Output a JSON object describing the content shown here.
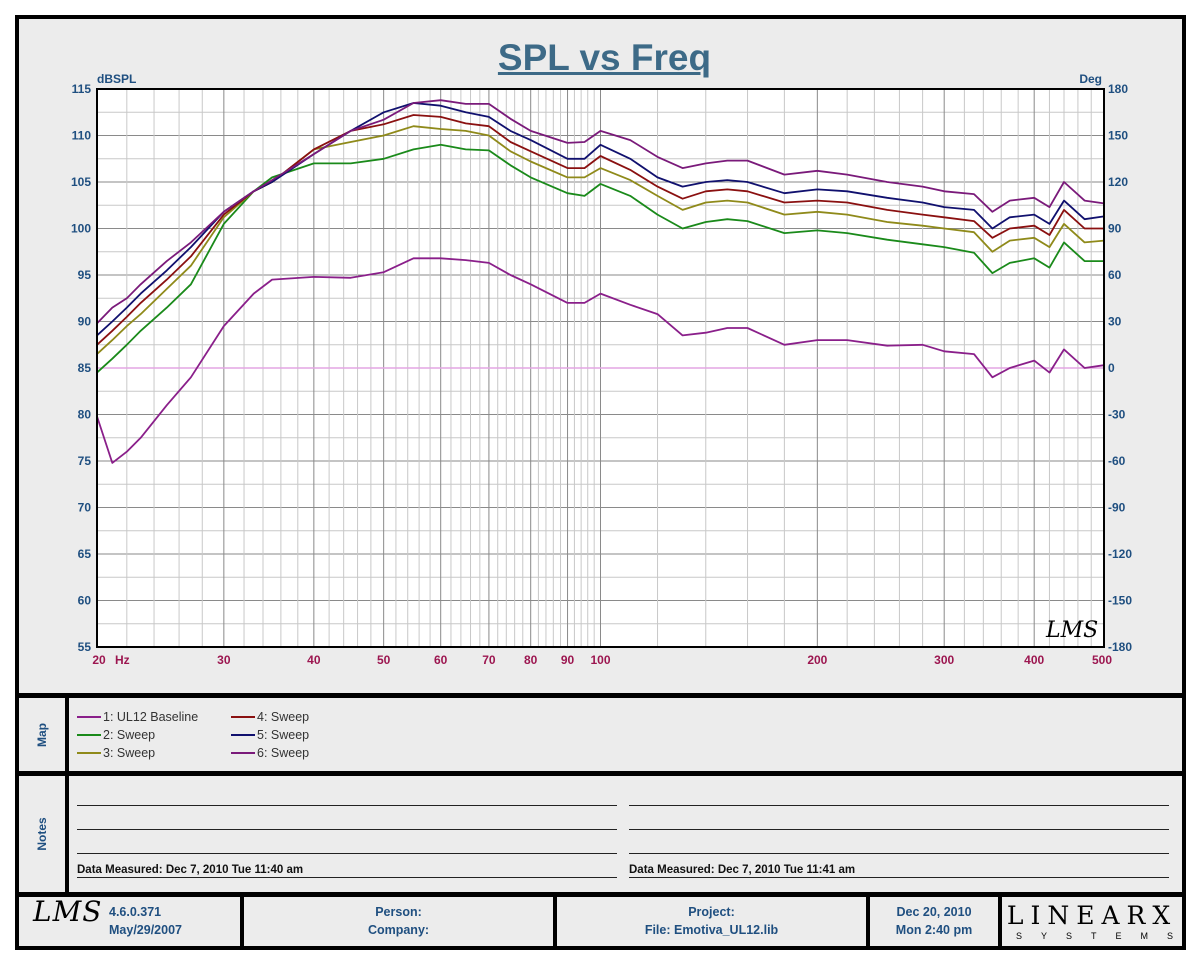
{
  "chart_data": {
    "type": "line",
    "title": "SPL vs Freq",
    "ylabel": "dBSPL",
    "y2label": "Deg",
    "xscale": "log",
    "xlim": [
      20,
      500
    ],
    "ylim": [
      55,
      115
    ],
    "y2lim": [
      -180,
      180
    ],
    "grid": true,
    "x_ticks": [
      "20",
      "30",
      "40",
      "50",
      "60",
      "70",
      "80",
      "90",
      "100",
      "200",
      "300",
      "400",
      "500"
    ],
    "x_unit_label": "Hz",
    "y_ticks": [
      "115",
      "110",
      "105",
      "100",
      "95",
      "90",
      "85",
      "80",
      "75",
      "70",
      "65",
      "60",
      "55"
    ],
    "y2_ticks": [
      "180",
      "150",
      "120",
      "90",
      "60",
      "30",
      "0",
      "-30",
      "-60",
      "-90",
      "-120",
      "-150",
      "-180"
    ],
    "reference_line": {
      "deg": 0,
      "color": "#e3a6e3"
    },
    "x": [
      20,
      21,
      22,
      23,
      25,
      27,
      30,
      33,
      35,
      40,
      45,
      50,
      55,
      60,
      65,
      70,
      75,
      80,
      90,
      95,
      100,
      110,
      120,
      130,
      140,
      150,
      160,
      180,
      200,
      220,
      250,
      280,
      300,
      330,
      350,
      370,
      400,
      420,
      440,
      470,
      500
    ],
    "series": [
      {
        "name": "1: UL12 Baseline",
        "color": "#8a1f8a",
        "values": [
          79.8,
          74.8,
          76,
          77.5,
          81,
          84,
          89.5,
          93,
          94.5,
          94.8,
          94.7,
          95.3,
          96.8,
          96.8,
          96.6,
          96.3,
          95,
          94,
          92,
          92,
          93,
          91.8,
          90.8,
          88.5,
          88.8,
          89.3,
          89.3,
          87.5,
          88,
          88,
          87.4,
          87.5,
          86.8,
          86.5,
          84,
          85,
          85.8,
          84.5,
          87,
          85,
          85.3
        ]
      },
      {
        "name": "2: Sweep",
        "color": "#1a8a1a",
        "values": [
          84.5,
          86,
          87.5,
          89,
          91.5,
          94,
          100.5,
          104,
          105.5,
          107,
          107,
          107.5,
          108.5,
          109,
          108.5,
          108.4,
          106.8,
          105.5,
          103.8,
          103.5,
          104.8,
          103.5,
          101.5,
          100,
          100.7,
          101,
          100.8,
          99.5,
          99.8,
          99.5,
          98.8,
          98.3,
          98,
          97.4,
          95.2,
          96.3,
          96.8,
          95.8,
          98.5,
          96.5,
          96.5
        ]
      },
      {
        "name": "3: Sweep",
        "color": "#8f8a1a",
        "values": [
          86.5,
          88,
          89.5,
          90.8,
          93.5,
          96,
          101.2,
          104,
          105,
          108.5,
          109.3,
          110,
          111,
          110.7,
          110.5,
          110,
          108.3,
          107.2,
          105.5,
          105.5,
          106.5,
          105.2,
          103.5,
          102,
          102.8,
          103,
          102.8,
          101.5,
          101.8,
          101.5,
          100.7,
          100.3,
          100,
          99.6,
          97.5,
          98.7,
          99,
          98,
          100.5,
          98.5,
          98.7
        ]
      },
      {
        "name": "4: Sweep",
        "color": "#8a1010",
        "values": [
          87.5,
          89,
          90.5,
          92,
          94.5,
          97,
          101.5,
          104,
          105,
          108.5,
          110.5,
          111.2,
          112.2,
          112,
          111.3,
          111,
          109.3,
          108.3,
          106.5,
          106.5,
          107.8,
          106.3,
          104.5,
          103.2,
          104,
          104.2,
          104,
          102.8,
          103,
          102.8,
          102,
          101.5,
          101.2,
          100.8,
          99,
          100,
          100.3,
          99.3,
          102,
          100,
          100
        ]
      },
      {
        "name": "5: Sweep",
        "color": "#10106e",
        "values": [
          88.5,
          90,
          91.5,
          93,
          95.5,
          98,
          101.8,
          104,
          105,
          108,
          110.5,
          112.5,
          113.5,
          113.2,
          112.5,
          112,
          110.5,
          109.5,
          107.5,
          107.5,
          109,
          107.5,
          105.5,
          104.5,
          105,
          105.2,
          105,
          103.8,
          104.2,
          104,
          103.3,
          102.8,
          102.3,
          102,
          100,
          101.2,
          101.5,
          100.5,
          103,
          101,
          101.3
        ]
      },
      {
        "name": "6: Sweep",
        "color": "#7a1a7a",
        "values": [
          89.8,
          91.5,
          92.5,
          94,
          96.5,
          98.5,
          101.8,
          104,
          105.2,
          108,
          110.5,
          111.7,
          113.5,
          113.8,
          113.4,
          113.4,
          111.8,
          110.5,
          109.2,
          109.3,
          110.5,
          109.5,
          107.7,
          106.5,
          107,
          107.3,
          107.3,
          105.8,
          106.2,
          105.8,
          105,
          104.5,
          104,
          103.7,
          101.8,
          103,
          103.3,
          102.3,
          105,
          103,
          102.7
        ]
      }
    ]
  },
  "map": {
    "label": "Map"
  },
  "notes": {
    "label": "Notes",
    "left_measured": "Data Measured: Dec  7, 2010  Tue 11:40 am",
    "right_measured": "Data Measured: Dec  7, 2010  Tue 11:41 am"
  },
  "footer": {
    "logo": "LMS",
    "version": "4.6.0.371",
    "version_date": "May/29/2007",
    "person_label": "Person:",
    "company_label": "Company:",
    "project_label": "Project:",
    "file": "File: Emotiva_UL12.lib",
    "date": "Dec 20, 2010",
    "time": "Mon  2:40 pm",
    "brand": "LINEARX",
    "brand_sub": "SYSTEMS"
  },
  "colors": {
    "title": "#3d6a87",
    "axis_text": "#1f4f80",
    "x_tick_text": "#9c1650"
  }
}
